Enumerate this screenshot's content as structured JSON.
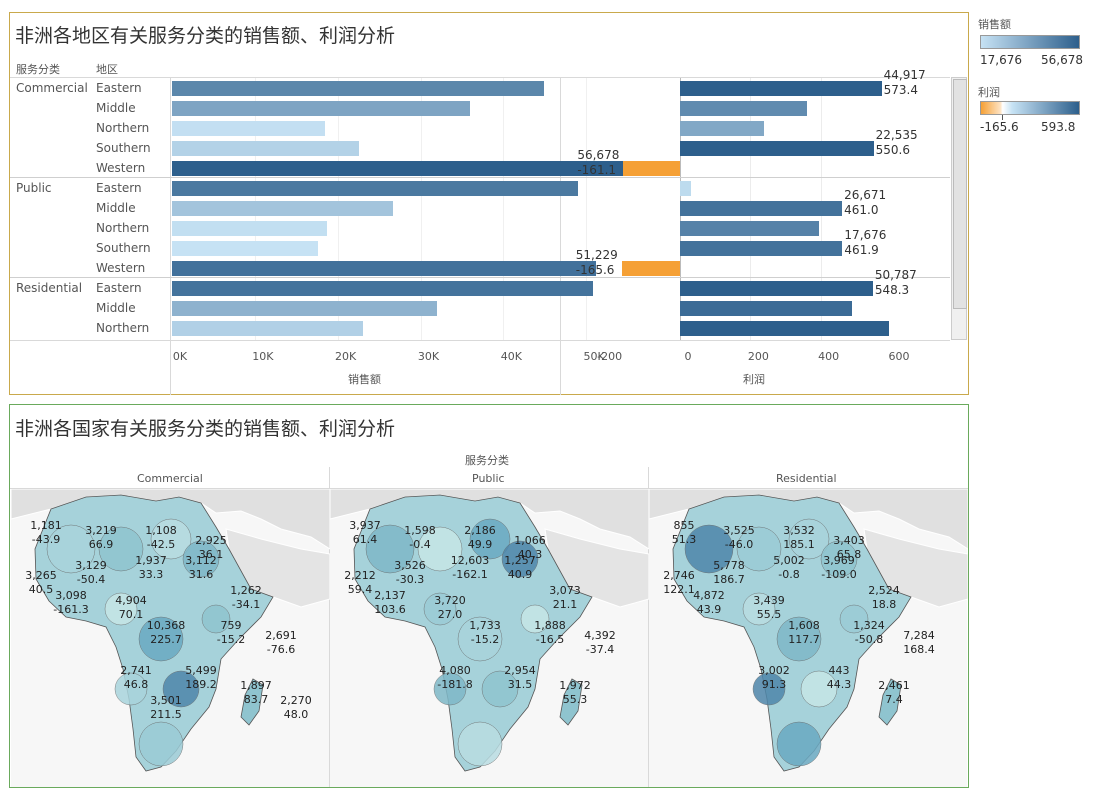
{
  "top_panel": {
    "title": "非洲各地区有关服务分类的销售额、利润分析",
    "col_header_category": "服务分类",
    "col_header_region": "地区",
    "sales_axis_title": "销售额",
    "profit_axis_title": "利润",
    "sales_ticks": [
      "0K",
      "10K",
      "20K",
      "30K",
      "40K",
      "50K"
    ],
    "profit_ticks": [
      "-200",
      "0",
      "200",
      "400",
      "600"
    ]
  },
  "bottom_panel": {
    "title": "非洲各国家有关服务分类的销售额、利润分析",
    "facet_header": "服务分类",
    "facets": [
      "Commercial",
      "Public",
      "Residential"
    ]
  },
  "legend": {
    "sales_title": "销售额",
    "sales_min": "17,676",
    "sales_max": "56,678",
    "sales_color_low": "#c6e2f4",
    "sales_color_high": "#2d5f8c",
    "profit_title": "利润",
    "profit_min": "-165.6",
    "profit_max": "593.8",
    "profit_color_neg": "#f5a035",
    "profit_color_high": "#2d5f8c"
  },
  "chart_data": [
    {
      "type": "bar",
      "title": "非洲各地区有关服务分类的销售额、利润分析",
      "xlabel": "销售额",
      "xlim": [
        0,
        60000
      ],
      "groups": [
        {
          "name": "Commercial",
          "rows": [
            {
              "region": "Eastern",
              "sales": 44917,
              "profit": 573.4,
              "sales_label": "44,917",
              "profit_label": "573.4"
            },
            {
              "region": "Middle",
              "sales": 36000,
              "profit": 360
            },
            {
              "region": "Northern",
              "sales": 18500,
              "profit": 240
            },
            {
              "region": "Southern",
              "sales": 22535,
              "profit": 550.6,
              "sales_label": "22,535",
              "profit_label": "550.6"
            },
            {
              "region": "Western",
              "sales": 56678,
              "profit": -161.1,
              "sales_label": "56,678",
              "profit_label": "-161.1"
            }
          ]
        },
        {
          "name": "Public",
          "rows": [
            {
              "region": "Eastern",
              "sales": 49000,
              "profit": 30
            },
            {
              "region": "Middle",
              "sales": 26671,
              "profit": 461.0,
              "sales_label": "26,671",
              "profit_label": "461.0"
            },
            {
              "region": "Northern",
              "sales": 18700,
              "profit": 395
            },
            {
              "region": "Southern",
              "sales": 17676,
              "profit": 461.9,
              "sales_label": "17,676",
              "profit_label": "461.9"
            },
            {
              "region": "Western",
              "sales": 51229,
              "profit": -165.6,
              "sales_label": "51,229",
              "profit_label": "-165.6"
            }
          ]
        },
        {
          "name": "Residential",
          "rows": [
            {
              "region": "Eastern",
              "sales": 50787,
              "profit": 548.3,
              "sales_label": "50,787",
              "profit_label": "548.3"
            },
            {
              "region": "Middle",
              "sales": 32000,
              "profit": 490
            },
            {
              "region": "Northern",
              "sales": 23000,
              "profit": 593.8
            }
          ]
        }
      ]
    },
    {
      "type": "map",
      "title": "非洲各国家有关服务分类的销售额、利润分析",
      "facets": [
        {
          "name": "Commercial",
          "labels": [
            {
              "sales": "1,181",
              "profit": "-43.9"
            },
            {
              "sales": "3,219",
              "profit": "66.9"
            },
            {
              "sales": "1,108",
              "profit": "-42.5"
            },
            {
              "sales": "2,925",
              "profit": "36.1"
            },
            {
              "sales": "3,265",
              "profit": "40.5"
            },
            {
              "sales": "3,129",
              "profit": "-50.4"
            },
            {
              "sales": "1,937",
              "profit": "33.3"
            },
            {
              "sales": "3,112",
              "profit": "31.6"
            },
            {
              "sales": "1,262",
              "profit": "-34.1"
            },
            {
              "sales": "3,098",
              "profit": "-161.3"
            },
            {
              "sales": "4,904",
              "profit": "70.1"
            },
            {
              "sales": "759",
              "profit": "-15.2"
            },
            {
              "sales": "10,368",
              "profit": "225.7"
            },
            {
              "sales": "2,691",
              "profit": "-76.6"
            },
            {
              "sales": "2,741",
              "profit": "46.8"
            },
            {
              "sales": "5,499",
              "profit": "189.2"
            },
            {
              "sales": "1,897",
              "profit": "83.7"
            },
            {
              "sales": "2,270",
              "profit": "48.0"
            },
            {
              "sales": "3,501",
              "profit": "211.5"
            }
          ]
        },
        {
          "name": "Public",
          "labels": [
            {
              "sales": "3,937",
              "profit": "61.4"
            },
            {
              "sales": "1,598",
              "profit": "-0.4"
            },
            {
              "sales": "2,186",
              "profit": "49.9"
            },
            {
              "sales": "1,066",
              "profit": "40.3"
            },
            {
              "sales": "2,212",
              "profit": "59.4"
            },
            {
              "sales": "3,526",
              "profit": "-30.3"
            },
            {
              "sales": "12,603",
              "profit": "-162.1"
            },
            {
              "sales": "1,257",
              "profit": "40.9"
            },
            {
              "sales": "3,073",
              "profit": "21.1"
            },
            {
              "sales": "2,137",
              "profit": "103.6"
            },
            {
              "sales": "3,720",
              "profit": "27.0"
            },
            {
              "sales": "1,888",
              "profit": "-16.5"
            },
            {
              "sales": "1,733",
              "profit": "-15.2"
            },
            {
              "sales": "4,392",
              "profit": "-37.4"
            },
            {
              "sales": "4,080",
              "profit": "-181.8"
            },
            {
              "sales": "2,954",
              "profit": "31.5"
            },
            {
              "sales": "1,972",
              "profit": "55.3"
            }
          ]
        },
        {
          "name": "Residential",
          "labels": [
            {
              "sales": "855",
              "profit": "51.3"
            },
            {
              "sales": "3,525",
              "profit": "-46.0"
            },
            {
              "sales": "3,532",
              "profit": "185.1"
            },
            {
              "sales": "3,403",
              "profit": "65.8"
            },
            {
              "sales": "2,746",
              "profit": "122.1"
            },
            {
              "sales": "5,778",
              "profit": "186.7"
            },
            {
              "sales": "5,002",
              "profit": "-0.8"
            },
            {
              "sales": "3,969",
              "profit": "-109.0"
            },
            {
              "sales": "2,524",
              "profit": "18.8"
            },
            {
              "sales": "4,872",
              "profit": "43.9"
            },
            {
              "sales": "3,439",
              "profit": "55.5"
            },
            {
              "sales": "1,324",
              "profit": "-50.8"
            },
            {
              "sales": "1,608",
              "profit": "117.7"
            },
            {
              "sales": "7,284",
              "profit": "168.4"
            },
            {
              "sales": "3,002",
              "profit": "91.3"
            },
            {
              "sales": "443",
              "profit": "44.3"
            },
            {
              "sales": "2,461",
              "profit": "7.4"
            }
          ]
        }
      ]
    }
  ]
}
